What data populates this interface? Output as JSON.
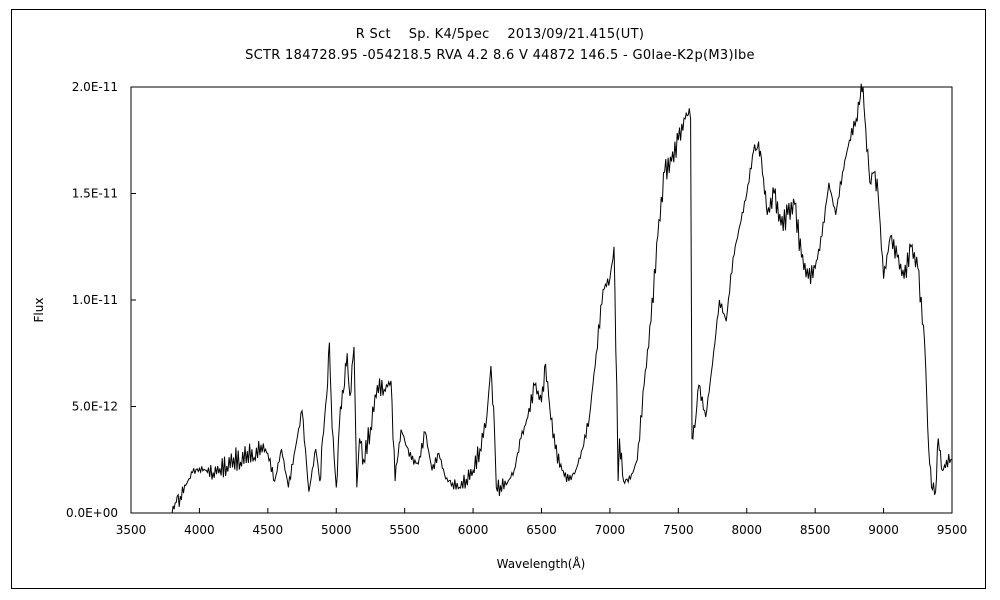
{
  "chart_data": {
    "type": "line",
    "title": "R Sct    Sp. K4/5pec    2013/09/21.415(UT)",
    "subtitle": "SCTR 184728.95 -054218.5 RVA 4.2 8.6 V 44872 146.5 - G0Iae-K2p(M3)Ibe",
    "xlabel": "Wavelength(Å)",
    "ylabel": "Flux",
    "xlim": [
      3500,
      9500
    ],
    "ylim": [
      0,
      2e-11
    ],
    "xticks": [
      3500,
      4000,
      4500,
      5000,
      5500,
      6000,
      6500,
      7000,
      7500,
      8000,
      8500,
      9000,
      9500
    ],
    "xtick_labels": [
      "3500",
      "4000",
      "4500",
      "5000",
      "5500",
      "6000",
      "6500",
      "7000",
      "7500",
      "8000",
      "8500",
      "9000",
      "9500"
    ],
    "yticks": [
      0,
      5e-12,
      1e-11,
      1.5e-11,
      2e-11
    ],
    "ytick_labels": [
      "0.0E+00",
      "5.0E-12",
      "1.0E-11",
      "1.5E-11",
      "2.0E-11"
    ],
    "grid": false,
    "legend": "none",
    "line_color": "#000000",
    "series": [
      {
        "x": [
          3800,
          3830,
          3860,
          3900,
          3950,
          4000,
          4050,
          4100,
          4150,
          4200,
          4250,
          4300,
          4350,
          4400,
          4450,
          4500,
          4550,
          4600,
          4650,
          4700,
          4750,
          4800,
          4850,
          4880,
          4900,
          4930,
          4950,
          4970,
          5000,
          5030,
          5060,
          5080,
          5100,
          5130,
          5150,
          5170,
          5200,
          5250,
          5300,
          5350,
          5400,
          5430,
          5460,
          5480,
          5500,
          5550,
          5600,
          5650,
          5700,
          5750,
          5800,
          5850,
          5900,
          5950,
          6000,
          6050,
          6100,
          6130,
          6150,
          6170,
          6200,
          6250,
          6300,
          6350,
          6400,
          6450,
          6500,
          6530,
          6560,
          6600,
          6650,
          6700,
          6750,
          6800,
          6850,
          6900,
          6950,
          7000,
          7030,
          7050,
          7060,
          7070,
          7100,
          7150,
          7200,
          7250,
          7300,
          7350,
          7400,
          7450,
          7500,
          7550,
          7580,
          7590,
          7600,
          7620,
          7650,
          7700,
          7750,
          7800,
          7850,
          7900,
          7950,
          8000,
          8050,
          8080,
          8100,
          8130,
          8150,
          8200,
          8250,
          8300,
          8350,
          8400,
          8450,
          8500,
          8550,
          8600,
          8650,
          8700,
          8750,
          8800,
          8830,
          8850,
          8870,
          8900,
          8930,
          8960,
          9000,
          9050,
          9100,
          9150,
          9200,
          9250,
          9300,
          9330,
          9350,
          9380,
          9400,
          9430,
          9460,
          9500
        ],
        "y": [
          0,
          5e-13,
          8e-13,
          1.3e-12,
          1.9e-12,
          2.1e-12,
          2e-12,
          1.9e-12,
          2.1e-12,
          2.2e-12,
          2.6e-12,
          2.4e-12,
          2.9e-12,
          2.6e-12,
          3.2e-12,
          2.8e-12,
          1.5e-12,
          3e-12,
          1.2e-12,
          3e-12,
          4.8e-12,
          1e-12,
          3e-12,
          1.5e-12,
          3.5e-12,
          5.5e-12,
          8e-12,
          4e-12,
          1.2e-12,
          5e-12,
          6e-12,
          7.5e-12,
          5.5e-12,
          7.8e-12,
          1.2e-12,
          3.5e-12,
          2.5e-12,
          4e-12,
          6e-12,
          5.8e-12,
          6.2e-12,
          1.5e-12,
          3.3e-12,
          3.8e-12,
          3.4e-12,
          2.5e-12,
          2.3e-12,
          3.8e-12,
          2e-12,
          2.8e-12,
          1.6e-12,
          1.4e-12,
          1.2e-12,
          1.6e-12,
          2e-12,
          3e-12,
          4.5e-12,
          6.9e-12,
          5e-12,
          1.2e-12,
          1.3e-12,
          1.4e-12,
          2e-12,
          3.5e-12,
          4.5e-12,
          6e-12,
          5.2e-12,
          7e-12,
          5e-12,
          3e-12,
          2e-12,
          1.5e-12,
          2e-12,
          3e-12,
          4.5e-12,
          7.5e-12,
          1.05e-11,
          1.1e-11,
          1.25e-11,
          6e-12,
          1.5e-12,
          3.5e-12,
          1.5e-12,
          1.6e-12,
          2.5e-12,
          6e-12,
          9e-12,
          1.3e-11,
          1.6e-11,
          1.65e-11,
          1.75e-11,
          1.85e-11,
          1.9e-11,
          1.85e-11,
          3.5e-12,
          4e-12,
          6e-12,
          4.5e-12,
          7e-12,
          1e-11,
          9e-12,
          1.2e-11,
          1.35e-11,
          1.5e-11,
          1.7e-11,
          1.72e-11,
          1.7e-11,
          1.5e-11,
          1.4e-11,
          1.5e-11,
          1.35e-11,
          1.4e-11,
          1.45e-11,
          1.2e-11,
          1.1e-11,
          1.15e-11,
          1.3e-11,
          1.55e-11,
          1.4e-11,
          1.6e-11,
          1.75e-11,
          1.85e-11,
          1.95e-11,
          2e-11,
          1.8e-11,
          1.55e-11,
          1.6e-11,
          1.5e-11,
          1.1e-11,
          1.3e-11,
          1.2e-11,
          1.1e-11,
          1.25e-11,
          1.15e-11,
          8e-12,
          3e-12,
          1.2e-12,
          1e-12,
          3.5e-12,
          2e-12,
          2.5e-12,
          2.5e-12
        ]
      }
    ]
  }
}
